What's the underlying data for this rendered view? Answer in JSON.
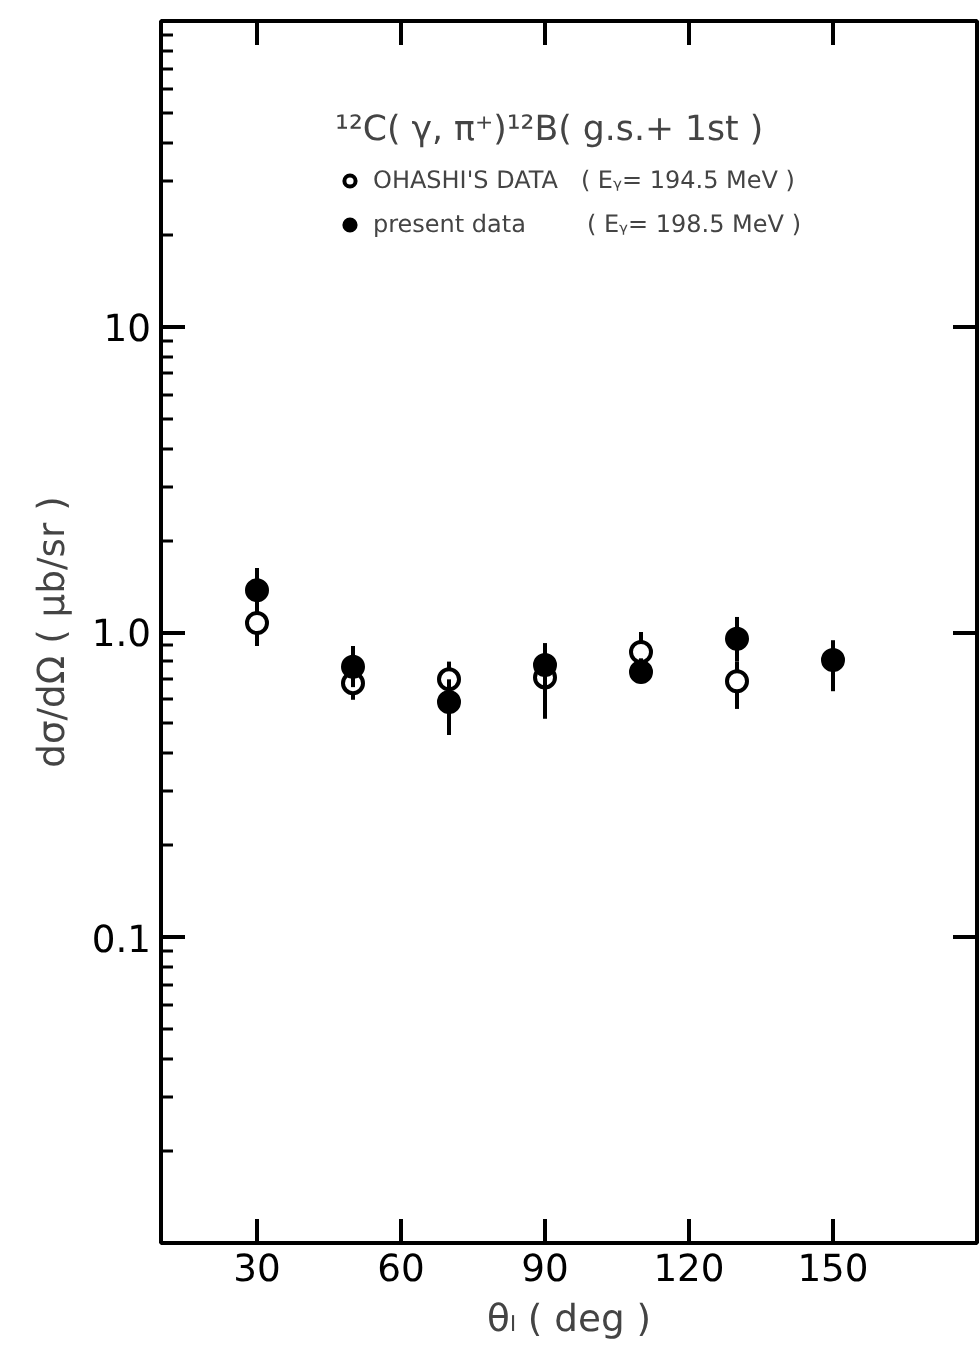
{
  "chart_data": {
    "type": "scatter",
    "legend_title": "¹²C( γ, π⁺)¹²B( g.s.+ 1st )",
    "xlabel": "θₗ ( deg )",
    "ylabel": "dσ/dΩ ( μb/sr )",
    "series": [
      {
        "name": "OHASHI'S DATA   ( Eᵧ= 194.5 MeV )",
        "color": "#ffffff",
        "x": [
          30,
          50,
          70,
          90,
          110,
          130
        ],
        "values": [
          1.07,
          0.68,
          0.7,
          0.71,
          0.86,
          0.69
        ],
        "errors": [
          [
            0.9,
            1.18
          ],
          [
            0.6,
            0.68
          ],
          [
            0.62,
            0.8
          ],
          [
            0.52,
            0.82
          ],
          [
            0.86,
            1.0
          ],
          [
            0.56,
            0.8
          ]
        ]
      },
      {
        "name": "present data        ( Eᵧ= 198.5 MeV )",
        "color": "#000000",
        "x": [
          30,
          50,
          70,
          90,
          110,
          130,
          150
        ],
        "values": [
          1.37,
          0.77,
          0.59,
          0.78,
          0.74,
          0.95,
          0.81
        ],
        "errors": [
          [
            1.15,
            1.62
          ],
          [
            0.66,
            0.9
          ],
          [
            0.46,
            0.7
          ],
          [
            0.66,
            0.92
          ],
          [
            0.68,
            0.82
          ],
          [
            0.8,
            1.12
          ],
          [
            0.64,
            0.94
          ]
        ]
      }
    ],
    "xlim": [
      10,
      180
    ],
    "ylim": [
      0.01,
      100
    ],
    "xticks": [
      30,
      60,
      90,
      120,
      150
    ],
    "yticks": [
      {
        "value": 0.1,
        "label": "0.1"
      },
      {
        "value": 1,
        "label": "1.0"
      },
      10
    ],
    "log": "y",
    "marker": "circle",
    "legend": "top"
  }
}
